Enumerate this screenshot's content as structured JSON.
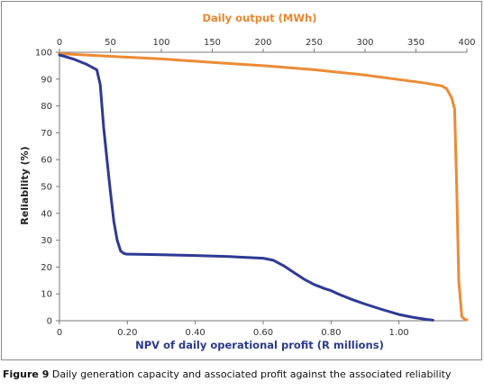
{
  "caption": {
    "label": "Figure 9",
    "text": " Daily generation capacity and associated profit against the associated reliability"
  },
  "chart_data": {
    "type": "line",
    "title": "",
    "ylabel": "Reliability (%)",
    "ylim": [
      0,
      100
    ],
    "yticks": [
      "0",
      "10",
      "20",
      "30",
      "40",
      "50",
      "60",
      "70",
      "80",
      "90",
      "100"
    ],
    "x_bottom": {
      "label": "NPV of daily operational profit (R millions)",
      "lim": [
        0,
        1.2
      ],
      "ticks": [
        "0",
        "0.20",
        "0.40",
        "0.60",
        "0.80",
        "1.00"
      ],
      "tick_values": [
        0,
        0.2,
        0.4,
        0.6,
        0.8,
        1.0
      ]
    },
    "x_top": {
      "label": "Daily output (MWh)",
      "lim": [
        0,
        400
      ],
      "ticks": [
        "0",
        "50",
        "100",
        "150",
        "200",
        "250",
        "300",
        "350",
        "400"
      ],
      "tick_values": [
        0,
        50,
        100,
        150,
        200,
        250,
        300,
        350,
        400
      ]
    },
    "grid": false,
    "series": [
      {
        "axis": "top",
        "color": "#ec8b35",
        "x": [
          0,
          25,
          50,
          100,
          150,
          200,
          250,
          300,
          340,
          360,
          375,
          380,
          385,
          388,
          390,
          392,
          395,
          398,
          400
        ],
        "y": [
          99.5,
          99,
          98.5,
          97.5,
          96.2,
          95,
          93.5,
          91.5,
          89.5,
          88.5,
          87.5,
          86.5,
          83,
          79,
          50,
          15,
          1.5,
          0.5,
          0.3
        ]
      },
      {
        "axis": "bottom",
        "color": "#2e3a95",
        "x": [
          0,
          0.04,
          0.08,
          0.11,
          0.12,
          0.13,
          0.14,
          0.15,
          0.16,
          0.17,
          0.18,
          0.19,
          0.2,
          0.21,
          0.25,
          0.3,
          0.4,
          0.5,
          0.55,
          0.6,
          0.63,
          0.66,
          0.69,
          0.72,
          0.75,
          0.78,
          0.8,
          0.83,
          0.86,
          0.9,
          0.95,
          1.0,
          1.04,
          1.08,
          1.1
        ],
        "y": [
          99,
          97.5,
          95.5,
          93.5,
          88,
          72,
          60,
          48,
          37,
          30,
          26,
          25,
          24.8,
          24.8,
          24.7,
          24.6,
          24.3,
          23.9,
          23.6,
          23.3,
          22.5,
          20.5,
          18,
          15.5,
          13.5,
          12,
          11.2,
          9.5,
          8,
          6.2,
          4.2,
          2.3,
          1.3,
          0.5,
          0.2
        ]
      }
    ]
  }
}
